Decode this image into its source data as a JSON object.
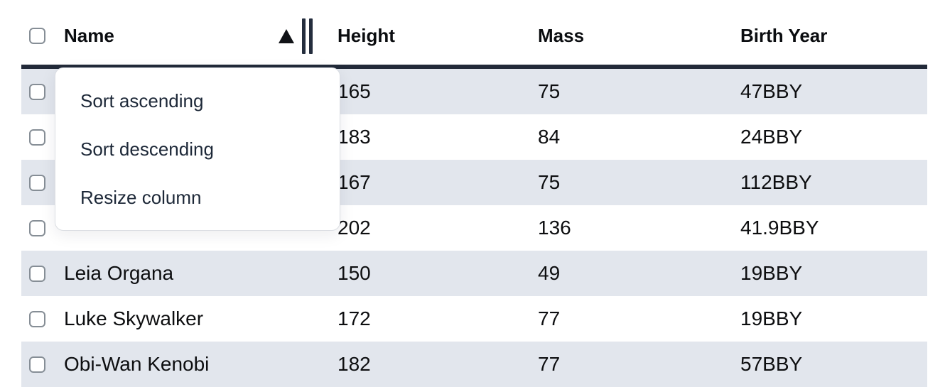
{
  "table": {
    "select_all_checked": false,
    "columns": [
      {
        "label": "Name",
        "sort": "ascending",
        "resizable": true
      },
      {
        "label": "Height",
        "sort": null
      },
      {
        "label": "Mass",
        "sort": null
      },
      {
        "label": "Birth Year",
        "sort": null
      }
    ],
    "rows": [
      {
        "name": "",
        "height": "165",
        "mass": "75",
        "birth_year": "47BBY",
        "checked": false
      },
      {
        "name": "",
        "height": "183",
        "mass": "84",
        "birth_year": "24BBY",
        "checked": false
      },
      {
        "name": "",
        "height": "167",
        "mass": "75",
        "birth_year": "112BBY",
        "checked": false
      },
      {
        "name": "",
        "height": "202",
        "mass": "136",
        "birth_year": "41.9BBY",
        "checked": false
      },
      {
        "name": "Leia Organa",
        "height": "150",
        "mass": "49",
        "birth_year": "19BBY",
        "checked": false
      },
      {
        "name": "Luke Skywalker",
        "height": "172",
        "mass": "77",
        "birth_year": "19BBY",
        "checked": false
      },
      {
        "name": "Obi-Wan Kenobi",
        "height": "182",
        "mass": "77",
        "birth_year": "57BBY",
        "checked": false
      }
    ]
  },
  "context_menu": {
    "items": [
      {
        "label": "Sort ascending"
      },
      {
        "label": "Sort descending"
      },
      {
        "label": "Resize column"
      }
    ]
  },
  "colors": {
    "header_border": "#222a39",
    "row_stripe": "#e2e6ed",
    "menu_text": "#1d2838",
    "cell_text": "#0d0e10",
    "checkbox_border": "#868e96",
    "sort_icon": "#111317"
  }
}
